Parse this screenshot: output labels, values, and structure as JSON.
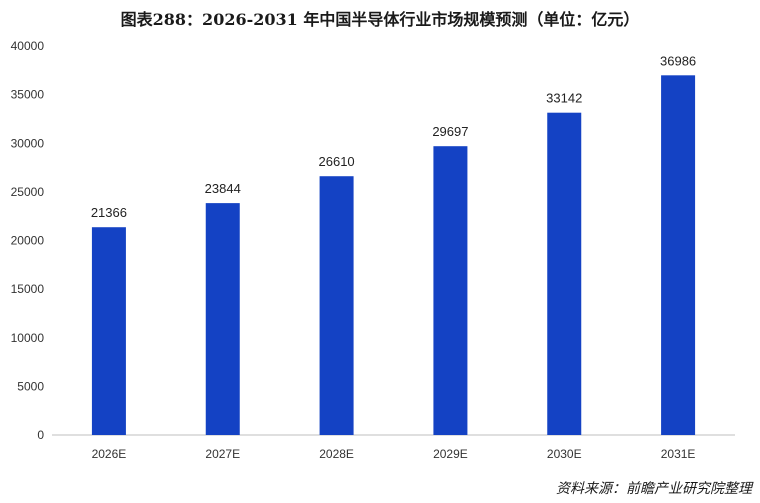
{
  "page": {
    "title": "图表288：2026-2031 年中国半导体行业市场规模预测（单位：亿元）",
    "source": "资料来源：前瞻产业研究院整理"
  },
  "colors": {
    "bar": "#1442c4",
    "axis": "#bfbfbf"
  },
  "chart_data": {
    "type": "bar",
    "title": "图表288：2026-2031 年中国半导体行业市场规模预测（单位：亿元）",
    "xlabel": "",
    "ylabel": "",
    "categories": [
      "2026E",
      "2027E",
      "2028E",
      "2029E",
      "2030E",
      "2031E"
    ],
    "series": [
      {
        "values": [
          21366,
          23844,
          26610,
          29697,
          33142,
          36986
        ]
      }
    ],
    "ylim": [
      0,
      40000
    ],
    "yticks": [
      0,
      5000,
      10000,
      15000,
      20000,
      25000,
      30000,
      35000,
      40000
    ],
    "grid": false,
    "legend": "none",
    "data_labels": true
  }
}
